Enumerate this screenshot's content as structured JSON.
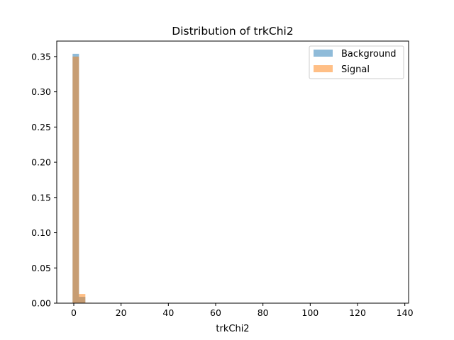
{
  "chart_data": {
    "type": "bar",
    "title": "Distribution of trkChi2",
    "xlabel": "trkChi2",
    "ylabel": "",
    "xlim": [
      -7.2,
      141.6
    ],
    "ylim": [
      0,
      0.372
    ],
    "xticks": [
      0,
      20,
      40,
      60,
      80,
      100,
      120,
      140
    ],
    "yticks": [
      0.0,
      0.05,
      0.1,
      0.15,
      0.2,
      0.25,
      0.3,
      0.35
    ],
    "ytick_labels": [
      "0.00",
      "0.05",
      "0.10",
      "0.15",
      "0.20",
      "0.25",
      "0.30",
      "0.35"
    ],
    "bin_edges": [
      -0.5,
      2.2,
      4.9,
      7.6
    ],
    "legend_position": "top-right",
    "series": [
      {
        "name": "Background",
        "color": "#1f77b4",
        "alpha": 0.5,
        "values": [
          0.354,
          0.009,
          0.0005
        ]
      },
      {
        "name": "Signal",
        "color": "#ff7f0e",
        "alpha": 0.5,
        "values": [
          0.35,
          0.013,
          0.0006
        ]
      }
    ]
  }
}
